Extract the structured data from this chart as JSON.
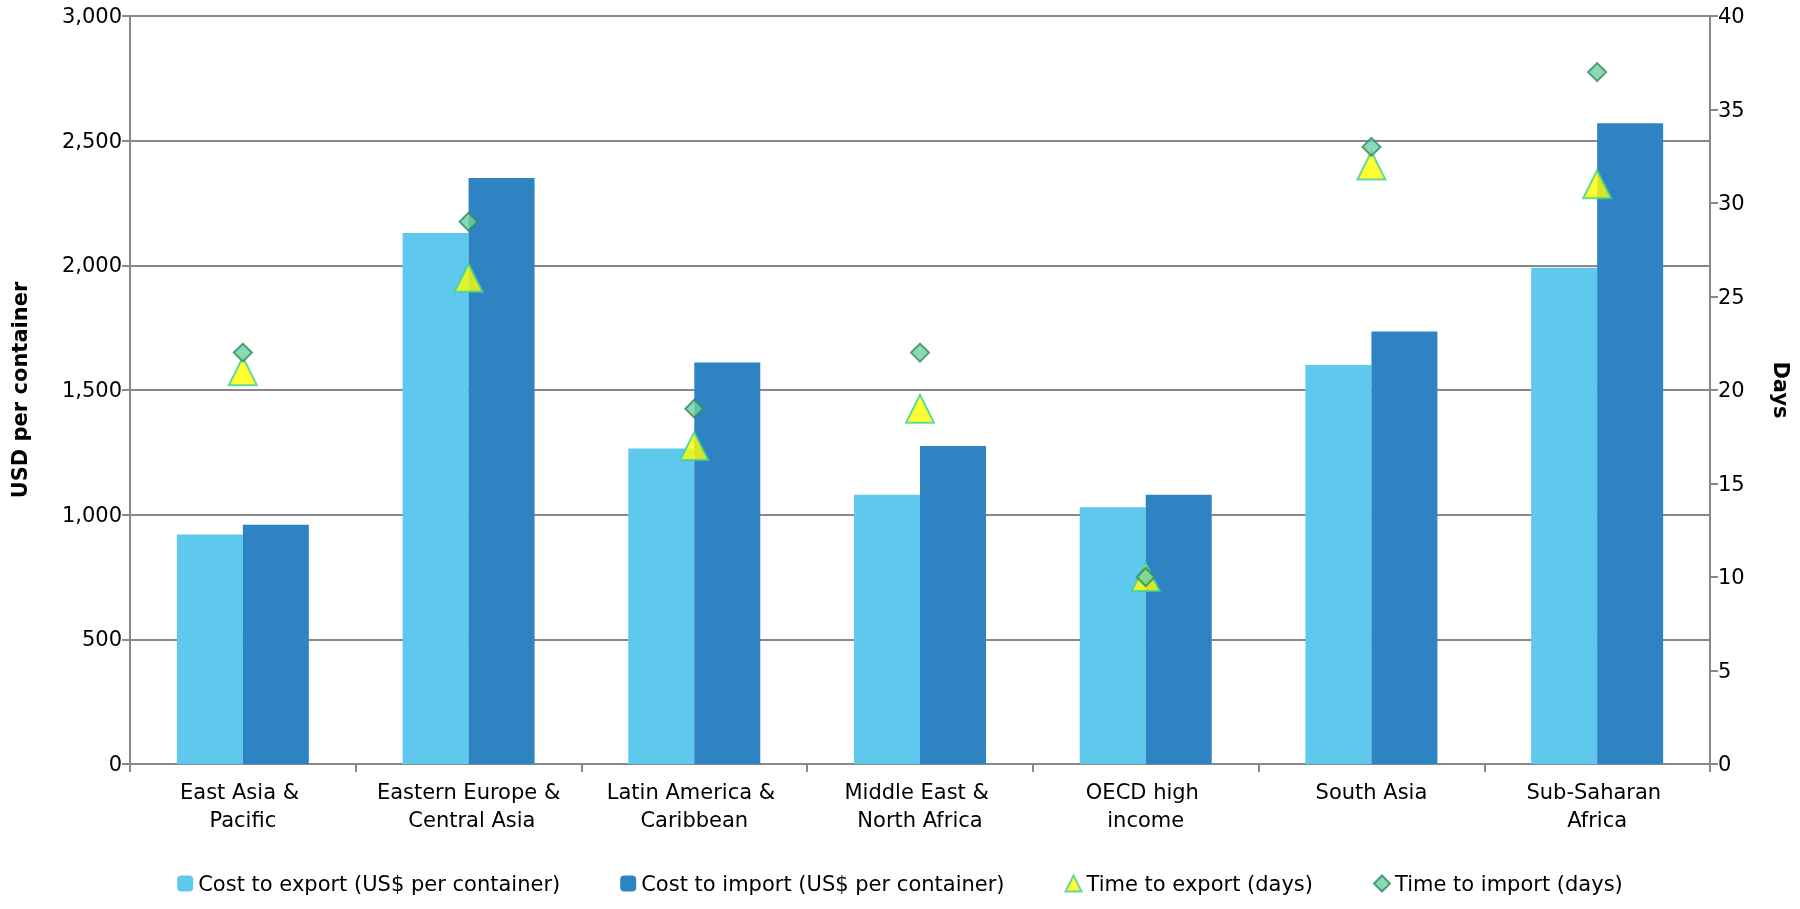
{
  "chart_data": {
    "type": "bar",
    "ylabel": "USD per container",
    "y2label": "Days",
    "categories": [
      "East Asia & Pacific",
      "Eastern Europe & Central Asia",
      "Latin America & Caribbean",
      "Middle East & North Africa",
      "OECD high income",
      "South Asia",
      "Sub-Saharan Africa"
    ],
    "series": [
      {
        "name": "Cost to export (US$ per container)",
        "color": "#5fc9ed",
        "values": [
          920,
          2130,
          1265,
          1080,
          1030,
          1600,
          1990
        ]
      },
      {
        "name": "Cost to import (US$ per container)",
        "color": "#2e83c3",
        "values": [
          960,
          2350,
          1610,
          1275,
          1080,
          1735,
          2570
        ]
      },
      {
        "name": "Time to export (days)",
        "type": "scatter",
        "axis": "y2",
        "marker": "triangle",
        "color": "#ffff00",
        "x": [
          "East Asia & Pacific",
          "Eastern Europe & Central Asia",
          "Latin America & Caribbean",
          "Middle East & North Africa",
          "OECD high income",
          "South Asia",
          "Sub-Saharan Africa"
        ],
        "values": [
          21,
          26,
          17,
          19,
          10,
          32,
          31
        ]
      },
      {
        "name": "Time to import (days)",
        "type": "scatter",
        "axis": "y2",
        "marker": "diamond",
        "color": "#6fcfa8",
        "x": [
          "East Asia & Pacific",
          "Eastern Europe & Central Asia",
          "Latin America & Caribbean",
          "Middle East & North Africa",
          "OECD high income",
          "South Asia",
          "Sub-Saharan Africa"
        ],
        "values": [
          22,
          29,
          19,
          22,
          10,
          33,
          37
        ]
      }
    ],
    "ylim": [
      0,
      3000
    ],
    "yticks": [
      0,
      500,
      {
        "value": 1000,
        "label": "1,000"
      },
      {
        "value": 1500,
        "label": "1,500"
      },
      {
        "value": 2000,
        "label": "2,000"
      },
      {
        "value": 2500,
        "label": "2,500"
      },
      {
        "value": 3000,
        "label": "3,000"
      }
    ],
    "y2lim": [
      0,
      40
    ],
    "y2ticks": [
      0,
      5,
      10,
      15,
      20,
      25,
      30,
      35,
      40
    ],
    "grid": "y",
    "legend": "bottom"
  }
}
